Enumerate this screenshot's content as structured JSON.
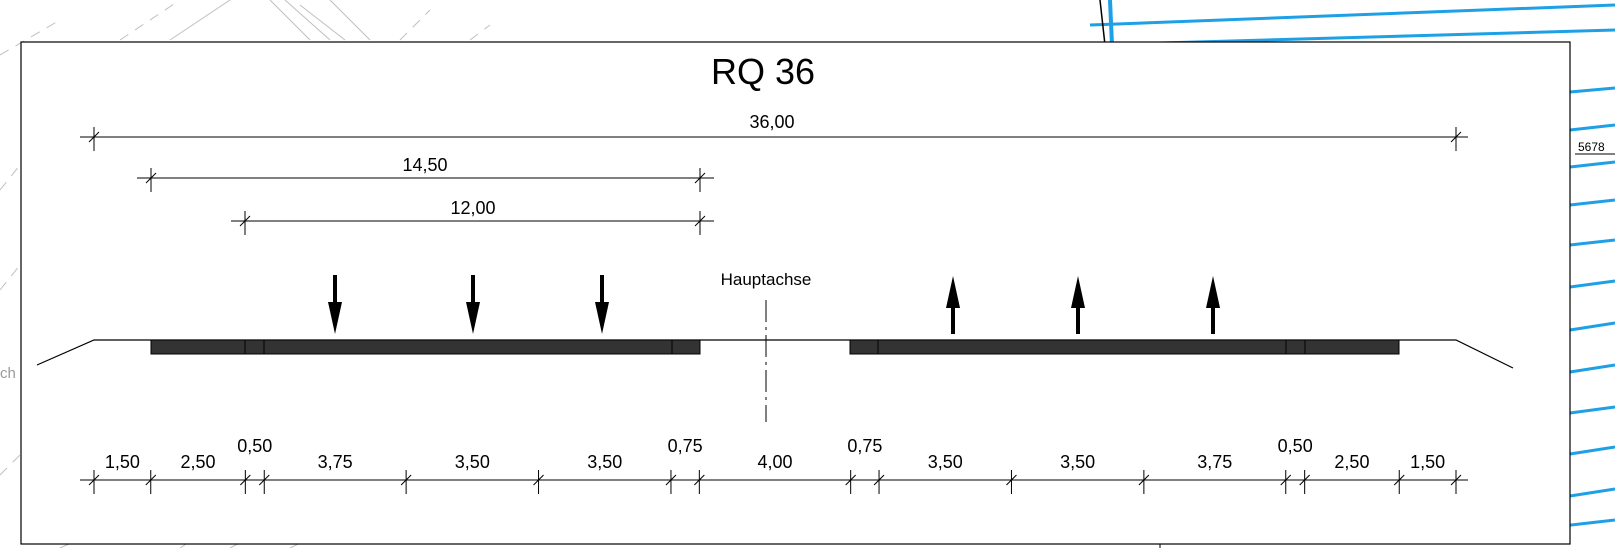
{
  "drawing": {
    "title": "RQ 36",
    "axis_label": "Hauptachse",
    "side_label": "5678",
    "left_fragment": "ch",
    "top_dimensions": [
      "36,00",
      "14,50",
      "12,00"
    ],
    "bottom_dimensions": [
      "1,50",
      "2,50",
      "0,50",
      "3,75",
      "3,50",
      "3,50",
      "0,75",
      "4,00",
      "0,75",
      "3,50",
      "3,50",
      "3,75",
      "0,50",
      "2,50",
      "1,50"
    ],
    "lane_widths_m": [
      1.5,
      2.5,
      0.5,
      3.75,
      3.5,
      3.5,
      0.75,
      4.0,
      0.75,
      3.5,
      3.5,
      3.75,
      0.5,
      2.5,
      1.5
    ],
    "arrows": {
      "left_direction": "down",
      "right_direction": "up",
      "count_each_side": 3
    },
    "colors": {
      "frame": "#000000",
      "background_lines": "#bfbfbf",
      "blue_lines": "#1ea0e6",
      "pavement": "#333333"
    }
  }
}
